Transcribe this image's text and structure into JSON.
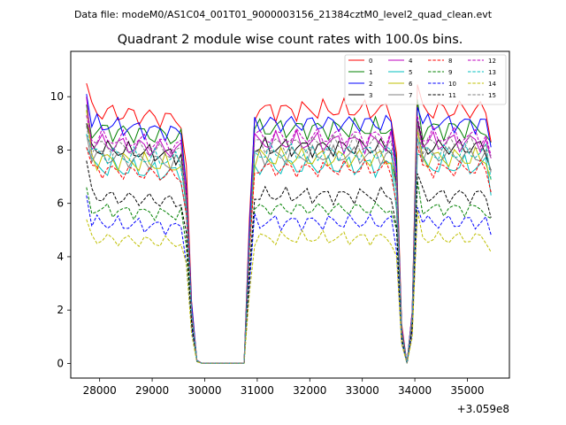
{
  "header": {
    "data_file_label": "Data file: modeM0/AS1C04_001T01_9000003156_21384cztM0_level2_quad_clean.evt"
  },
  "chart_data": {
    "type": "line",
    "title": "Quadrant 2 module wise count rates with 100.0s bins.",
    "xlabel": "",
    "ylabel": "",
    "x_offset_label": "+3.059e8",
    "xlim": [
      27450,
      35800
    ],
    "ylim": [
      -0.55,
      11.7
    ],
    "x_ticks": [
      28000,
      29000,
      30000,
      31000,
      32000,
      33000,
      34000,
      35000
    ],
    "x_tick_labels": [
      "28000",
      "29000",
      "30000",
      "31000",
      "32000",
      "33000",
      "34000",
      "35000"
    ],
    "y_ticks": [
      0,
      2,
      4,
      6,
      8,
      10
    ],
    "y_tick_labels": [
      "0",
      "2",
      "4",
      "6",
      "8",
      "10"
    ],
    "legend_position": "top-right",
    "x_range": {
      "start": 27750,
      "step": 100,
      "count": 78
    },
    "segment_shape": [
      {
        "x": 27750,
        "f": 1.0
      },
      {
        "x": 29600,
        "f": 0.96
      },
      {
        "x": 29700,
        "f": 0.55
      },
      {
        "x": 29770,
        "f": 0.12
      },
      {
        "x": 29860,
        "f": 0.0
      },
      {
        "x": 30750,
        "f": 0.0
      },
      {
        "x": 30850,
        "f": 0.55
      },
      {
        "x": 30900,
        "f": 1.0
      },
      {
        "x": 33630,
        "f": 1.0
      },
      {
        "x": 33700,
        "f": 0.4
      },
      {
        "x": 33760,
        "f": 0.1
      },
      {
        "x": 33820,
        "f": 0.0
      },
      {
        "x": 33900,
        "f": 0.0
      },
      {
        "x": 33970,
        "f": 0.3
      },
      {
        "x": 34050,
        "f": 1.0
      },
      {
        "x": 35350,
        "f": 1.0
      },
      {
        "x": 35450,
        "f": 0.9
      },
      {
        "x": 35550,
        "f": 0.05
      }
    ],
    "series": [
      {
        "name": "0",
        "color": "#ff0000",
        "dash": "solid",
        "level": 9.5,
        "start": 10.5,
        "amp": 0.45
      },
      {
        "name": "1",
        "color": "#008000",
        "dash": "solid",
        "level": 8.8,
        "start": 9.7,
        "amp": 0.45
      },
      {
        "name": "2",
        "color": "#0000ff",
        "dash": "solid",
        "level": 9.0,
        "start": 10.1,
        "amp": 0.4
      },
      {
        "name": "3",
        "color": "#000000",
        "dash": "solid",
        "level": 8.1,
        "start": 9.0,
        "amp": 0.4
      },
      {
        "name": "4",
        "color": "#bf00bf",
        "dash": "solid",
        "level": 8.3,
        "start": 10.0,
        "amp": 0.45
      },
      {
        "name": "5",
        "color": "#00bfbf",
        "dash": "solid",
        "level": 7.4,
        "start": 8.1,
        "amp": 0.45
      },
      {
        "name": "6",
        "color": "#bfbf00",
        "dash": "solid",
        "level": 7.7,
        "start": 9.5,
        "amp": 0.45
      },
      {
        "name": "7",
        "color": "#808080",
        "dash": "solid",
        "level": 7.8,
        "start": 8.6,
        "amp": 0.4
      },
      {
        "name": "8",
        "color": "#ff0000",
        "dash": "dashed",
        "level": 7.3,
        "start": 8.1,
        "amp": 0.35
      },
      {
        "name": "9",
        "color": "#008000",
        "dash": "dashed",
        "level": 5.8,
        "start": 6.6,
        "amp": 0.3
      },
      {
        "name": "10",
        "color": "#0000ff",
        "dash": "dashed",
        "level": 5.3,
        "start": 6.3,
        "amp": 0.35
      },
      {
        "name": "11",
        "color": "#000000",
        "dash": "dashed",
        "level": 6.3,
        "start": 7.6,
        "amp": 0.35
      },
      {
        "name": "12",
        "color": "#bf00bf",
        "dash": "dashed",
        "level": 8.5,
        "start": 9.3,
        "amp": 0.4
      },
      {
        "name": "13",
        "color": "#00bfbf",
        "dash": "dashed",
        "level": 7.9,
        "start": 8.6,
        "amp": 0.4
      },
      {
        "name": "14",
        "color": "#bfbf00",
        "dash": "dashed",
        "level": 4.7,
        "start": 5.4,
        "amp": 0.3
      },
      {
        "name": "15",
        "color": "#808080",
        "dash": "dashed",
        "level": 8.2,
        "start": 8.9,
        "amp": 0.4
      }
    ]
  }
}
